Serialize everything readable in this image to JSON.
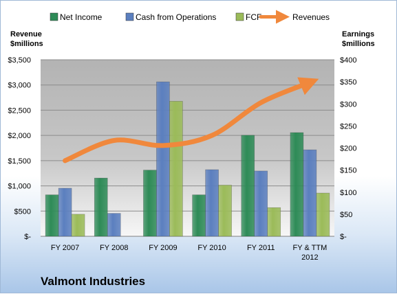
{
  "chart_data": {
    "type": "bar",
    "title": "",
    "company_label": "Valmont Industries",
    "categories": [
      "FY 2007",
      "FY 2008",
      "FY 2009",
      "FY 2010",
      "FY 2011",
      "FY & TTM 2012"
    ],
    "category_lines": [
      [
        "FY 2007"
      ],
      [
        "FY 2008"
      ],
      [
        "FY 2009"
      ],
      [
        "FY 2010"
      ],
      [
        "FY 2011"
      ],
      [
        "FY & TTM",
        "2012"
      ]
    ],
    "series": [
      {
        "name": "Net Income",
        "axis": "right",
        "color": "#2e8b57",
        "values": [
          94,
          132,
          150,
          94,
          229,
          235
        ]
      },
      {
        "name": "Cash from Operations",
        "axis": "right",
        "color": "#5b7fbf",
        "values": [
          109,
          52,
          350,
          151,
          148,
          196
        ]
      },
      {
        "name": "FCF",
        "axis": "right",
        "color": "#9bbb59",
        "values": [
          50,
          0,
          306,
          116,
          65,
          98
        ]
      }
    ],
    "line_series": {
      "name": "Revenues",
      "axis": "left",
      "color": "#f0883c",
      "values": [
        1500,
        1900,
        1800,
        2000,
        2650,
        3050
      ]
    },
    "left_axis": {
      "label_lines": [
        "Revenue",
        "$millions"
      ],
      "range": [
        0,
        3500
      ],
      "ticks": [
        0,
        500,
        1000,
        1500,
        2000,
        2500,
        3000,
        3500
      ],
      "tick_labels": [
        "$-",
        "$500",
        "$1,000",
        "$1,500",
        "$2,000",
        "$2,500",
        "$3,000",
        "$3,500"
      ]
    },
    "right_axis": {
      "label_lines": [
        "Earnings",
        "$millions"
      ],
      "range": [
        0,
        400
      ],
      "ticks": [
        0,
        50,
        100,
        150,
        200,
        250,
        300,
        350,
        400
      ],
      "tick_labels": [
        "$-",
        "$50",
        "$100",
        "$150",
        "$200",
        "$250",
        "$300",
        "$350",
        "$400"
      ]
    },
    "grid": true,
    "legend_position": "top"
  }
}
